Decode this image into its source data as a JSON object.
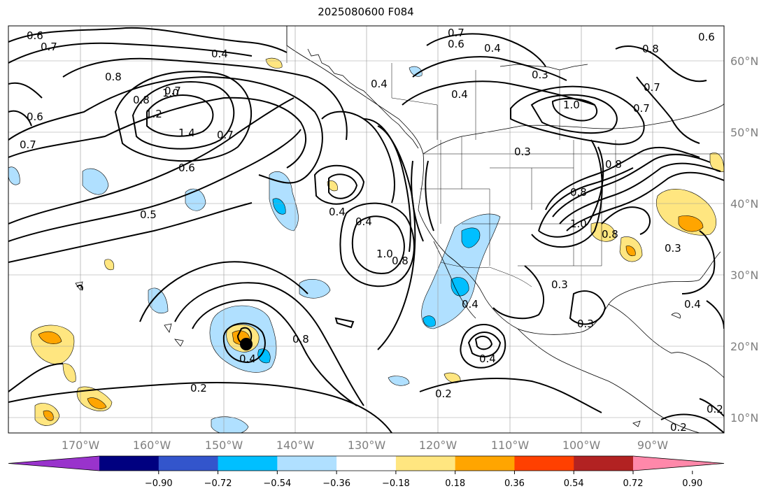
{
  "title": "2025080600 F084",
  "lat_ticks": [
    "60°N",
    "50°N",
    "40°N",
    "30°N",
    "20°N",
    "10°N"
  ],
  "lon_ticks": [
    "170°W",
    "160°W",
    "150°W",
    "140°W",
    "130°W",
    "120°W",
    "110°W",
    "100°W",
    "90°W"
  ],
  "colorbar": {
    "ticks": [
      "−0.90",
      "−0.72",
      "−0.54",
      "−0.36",
      "−0.18",
      "0.18",
      "0.36",
      "0.54",
      "0.72",
      "0.90"
    ],
    "colors": [
      "#9933cc",
      "#000080",
      "#3355cc",
      "#00bfff",
      "#b0e0ff",
      "#ffffff",
      "#ffe680",
      "#ffa500",
      "#ff4000",
      "#b22222",
      "#ff88aa"
    ]
  },
  "contour_labels": [
    "0.6",
    "0.7",
    "0.8",
    "0.8",
    "1.0",
    "1.2",
    "1.4",
    "0.7",
    "0.6",
    "0.6",
    "0.7",
    "0.5",
    "0.4",
    "0.4",
    "0.4",
    "0.4",
    "1.0",
    "0.8",
    "0.7",
    "0.6",
    "0.4",
    "0.8",
    "0.3",
    "1.0",
    "0.3",
    "0.8",
    "0.8",
    "1.0",
    "0.7",
    "0.7",
    "0.3",
    "0.3",
    "0.4",
    "0.3",
    "0.4",
    "0.4",
    "0.4",
    "0.2",
    "0.2",
    "0.2",
    "0.2",
    "0.4",
    "0.8",
    "0.7",
    "0.8",
    "0.6"
  ],
  "feature": {
    "marker": "storm-center"
  }
}
